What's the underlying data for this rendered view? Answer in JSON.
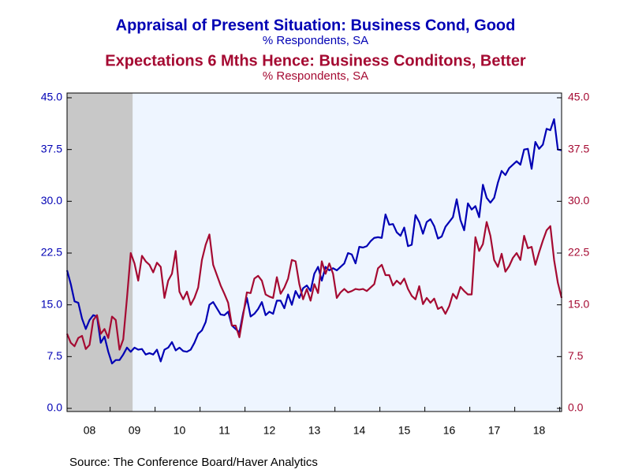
{
  "chart_data": {
    "type": "line",
    "series": [
      {
        "name": "Appraisal of Present Situation: Business Cond, Good",
        "units": "% Respondents, SA",
        "color": "#0000b4",
        "axis": "y",
        "values": [
          20,
          18,
          15.5,
          15.3,
          13,
          11.5,
          12.8,
          13.5,
          13.3,
          9.5,
          10.4,
          8.2,
          6.5,
          7,
          7,
          7.8,
          8.8,
          8.2,
          8.8,
          8.5,
          8.6,
          7.8,
          8,
          7.8,
          8.5,
          6.8,
          8.5,
          8.8,
          9.6,
          8.4,
          8.8,
          8.3,
          8.2,
          8.5,
          9.5,
          10.8,
          11.3,
          12.5,
          15,
          15.4,
          14.5,
          13.6,
          13.5,
          14,
          12,
          11.5,
          11,
          13.8,
          16,
          13.3,
          13.7,
          14.4,
          15.4,
          13.5,
          14,
          13.7,
          15.6,
          15.6,
          14.5,
          16.5,
          15,
          17,
          16,
          17.4,
          17.8,
          17,
          19.5,
          20.5,
          18.5,
          20.5,
          20,
          20.3,
          20,
          20.5,
          21,
          22.5,
          22.3,
          21,
          23.4,
          23.3,
          23.5,
          24.2,
          24.7,
          24.8,
          24.7,
          28.1,
          26.6,
          26.7,
          25.5,
          25,
          26.2,
          23.5,
          23.7,
          28,
          27,
          25.3,
          27,
          27.4,
          26.4,
          24.6,
          24.9,
          26.3,
          27,
          27.7,
          30.3,
          27.3,
          25.8,
          29.7,
          28.8,
          29.3,
          27.7,
          32.4,
          30.5,
          29.8,
          30.5,
          32.7,
          34.4,
          33.8,
          34.8,
          35.3,
          35.8,
          35.3,
          37.5,
          37.6,
          34.7,
          38.6,
          37.6,
          38.2,
          40.5,
          40.3,
          41.9,
          37.5,
          37.4
        ]
      },
      {
        "name": "Expectations 6 Mths Hence: Business Conditons, Better",
        "units": "% Respondents, SA",
        "color": "#a50a32",
        "axis": "y2",
        "values": [
          10.8,
          9.5,
          9,
          10.2,
          10.5,
          8.6,
          9.2,
          12.8,
          13.5,
          10.8,
          11.5,
          10.2,
          13.3,
          12.8,
          8.5,
          10,
          16,
          22.5,
          21,
          18.5,
          22.1,
          21.3,
          20.8,
          19.7,
          21.1,
          20.5,
          16,
          18.5,
          19.5,
          22.8,
          16.9,
          15.8,
          16.9,
          15,
          16,
          17.5,
          21.5,
          23.7,
          25.2,
          20.8,
          19.3,
          17.8,
          16.6,
          15.3,
          12,
          12,
          10.3,
          13.5,
          16.8,
          16.7,
          18.8,
          19.2,
          18.5,
          16.5,
          16.2,
          16,
          19,
          16.6,
          17.5,
          18.8,
          21.5,
          21.3,
          18,
          15.8,
          17.3,
          15.6,
          18,
          16.7,
          21.3,
          19.5,
          21,
          19.5,
          16,
          16.8,
          17.3,
          16.8,
          17,
          17.3,
          17.2,
          17.3,
          17,
          17.5,
          18,
          20.3,
          20.8,
          19.3,
          19.3,
          17.8,
          18.5,
          18,
          18.8,
          17.3,
          16.3,
          15.8,
          17.7,
          15.1,
          16,
          15.3,
          15.9,
          14.4,
          14.7,
          13.7,
          14.8,
          16.6,
          15.9,
          17.6,
          17,
          16.5,
          16.5,
          24.8,
          22.8,
          23.8,
          27,
          25,
          21.5,
          20.5,
          22.4,
          19.8,
          20.6,
          21.8,
          22.5,
          21.5,
          25,
          23.2,
          23.4,
          20.8,
          22.6,
          24.3,
          25.8,
          26.4,
          21.5,
          18.2,
          16
        ]
      }
    ],
    "categories": [
      null,
      null,
      null,
      null,
      null,
      null,
      "08",
      null,
      null,
      null,
      null,
      null,
      null,
      null,
      null,
      null,
      null,
      null,
      "09",
      null,
      null,
      null,
      null,
      null,
      null,
      null,
      null,
      null,
      null,
      null,
      "10",
      null,
      null,
      null,
      null,
      null,
      null,
      null,
      null,
      null,
      null,
      null,
      "11",
      null,
      null,
      null,
      null,
      null,
      null,
      null,
      null,
      null,
      null,
      null,
      "12",
      null,
      null,
      null,
      null,
      null,
      null,
      null,
      null,
      null,
      null,
      null,
      "13",
      null,
      null,
      null,
      null,
      null,
      null,
      null,
      null,
      null,
      null,
      null,
      "14",
      null,
      null,
      null,
      null,
      null,
      null,
      null,
      null,
      null,
      null,
      null,
      "15",
      null,
      null,
      null,
      null,
      null,
      null,
      null,
      null,
      null,
      null,
      null,
      "16",
      null,
      null,
      null,
      null,
      null,
      null,
      null,
      null,
      null,
      null,
      null,
      "17",
      null,
      null,
      null,
      null,
      null,
      null,
      null,
      null,
      null,
      null,
      null,
      "18",
      null,
      null,
      null,
      null,
      null,
      null
    ],
    "ylim": [
      0,
      45
    ],
    "yticks": [
      {
        "value": 0,
        "label": "0.0"
      },
      7.5,
      {
        "value": 15,
        "label": "15.0"
      },
      22.5,
      {
        "value": 30,
        "label": "30.0"
      },
      37.5,
      {
        "value": 45,
        "label": "45.0"
      }
    ],
    "y2lim": [
      0,
      45
    ],
    "y2ticks": [
      {
        "value": 0,
        "label": "0.0"
      },
      7.5,
      {
        "value": 15,
        "label": "15.0"
      },
      22.5,
      {
        "value": 30,
        "label": "30.0"
      },
      37.5,
      {
        "value": 45,
        "label": "45.0"
      }
    ],
    "shaded": {
      "start": 0,
      "end": 17,
      "color": "#c8c8c8"
    },
    "source": "Source:  The Conference Board/Haver Analytics"
  }
}
